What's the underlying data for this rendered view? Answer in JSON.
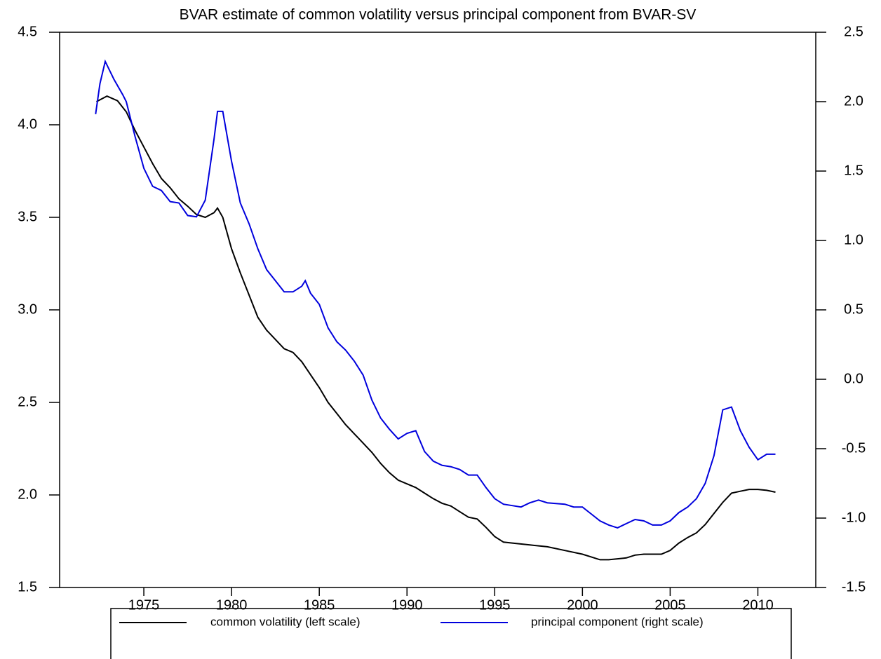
{
  "chart_data": {
    "type": "line",
    "title": "BVAR estimate of common volatility versus principal component from BVAR-SV",
    "xlim": [
      1970.2,
      2013.3
    ],
    "xticks": [
      1975,
      1980,
      1985,
      1990,
      1995,
      2000,
      2005,
      2010
    ],
    "ylim": [
      1.5,
      4.5
    ],
    "yticks": [
      {
        "value": 1.5,
        "label": "1.5"
      },
      {
        "value": 2,
        "label": "2.0"
      },
      {
        "value": 2.5,
        "label": "2.5"
      },
      {
        "value": 3,
        "label": "3.0"
      },
      {
        "value": 3.5,
        "label": "3.5"
      },
      {
        "value": 4,
        "label": "4.0"
      },
      {
        "value": 4.5,
        "label": "4.5"
      }
    ],
    "y2lim": [
      -1.5,
      2.5
    ],
    "y2ticks": [
      {
        "value": -1.5,
        "label": "-1.5"
      },
      {
        "value": -1,
        "label": "-1.0"
      },
      {
        "value": -0.5,
        "label": "-0.5"
      },
      {
        "value": 0,
        "label": "0.0"
      },
      {
        "value": 0.5,
        "label": "0.5"
      },
      {
        "value": 1,
        "label": "1.0"
      },
      {
        "value": 1.5,
        "label": "1.5"
      },
      {
        "value": 2,
        "label": "2.0"
      },
      {
        "value": 2.5,
        "label": "2.5"
      }
    ],
    "series": [
      {
        "name": "common volatility (left scale)",
        "color": "#000000",
        "x": [
          1972.3,
          1972.9,
          1973.5,
          1974,
          1974.5,
          1975,
          1975.5,
          1976,
          1976.5,
          1977,
          1977.5,
          1978,
          1978.5,
          1979,
          1979.2,
          1979.5,
          1980,
          1980.5,
          1981,
          1981.5,
          1982,
          1982.5,
          1983,
          1983.5,
          1984,
          1984.5,
          1985,
          1985.5,
          1986,
          1986.5,
          1987,
          1987.5,
          1988,
          1988.5,
          1989,
          1989.5,
          1990,
          1990.5,
          1991,
          1991.5,
          1992,
          1992.5,
          1993,
          1993.5,
          1994,
          1994.5,
          1995,
          1995.5,
          1996,
          1997,
          1998,
          1999,
          2000,
          2000.5,
          2001,
          2001.5,
          2002,
          2002.5,
          2003,
          2003.5,
          2004,
          2004.5,
          2005,
          2005.5,
          2006,
          2006.5,
          2007,
          2007.5,
          2008,
          2008.5,
          2009,
          2009.5,
          2010,
          2010.5,
          2011
        ],
        "values": [
          4.125,
          4.155,
          4.13,
          4.07,
          3.97,
          3.88,
          3.79,
          3.71,
          3.66,
          3.6,
          3.56,
          3.515,
          3.5,
          3.525,
          3.55,
          3.5,
          3.33,
          3.2,
          3.08,
          2.96,
          2.89,
          2.84,
          2.79,
          2.77,
          2.72,
          2.65,
          2.58,
          2.5,
          2.44,
          2.38,
          2.33,
          2.28,
          2.23,
          2.17,
          2.12,
          2.08,
          2.06,
          2.04,
          2.01,
          1.98,
          1.955,
          1.94,
          1.91,
          1.88,
          1.87,
          1.825,
          1.775,
          1.745,
          1.74,
          1.73,
          1.72,
          1.7,
          1.68,
          1.665,
          1.65,
          1.65,
          1.655,
          1.66,
          1.675,
          1.68,
          1.68,
          1.68,
          1.7,
          1.74,
          1.77,
          1.795,
          1.84,
          1.9,
          1.96,
          2.01,
          2.02,
          2.03,
          2.03,
          2.025,
          2.015
        ]
      },
      {
        "name": "principal component (right scale)",
        "color": "#0000dd",
        "axis": "y2",
        "x": [
          1972.25,
          1972.5,
          1972.8,
          1973.3,
          1973.8,
          1974,
          1974.5,
          1975,
          1975.5,
          1976,
          1976.5,
          1977,
          1977.5,
          1978,
          1978.5,
          1979,
          1979.2,
          1979.5,
          1980,
          1980.5,
          1981,
          1981.5,
          1982,
          1982.5,
          1983,
          1983.5,
          1984,
          1984.2,
          1984.5,
          1985,
          1985.5,
          1986,
          1986.5,
          1987,
          1987.5,
          1988,
          1988.5,
          1989,
          1989.5,
          1990,
          1990.5,
          1991,
          1991.5,
          1992,
          1992.5,
          1993,
          1993.5,
          1994,
          1994.5,
          1995,
          1995.5,
          1996,
          1996.5,
          1997,
          1997.5,
          1998,
          1999,
          1999.5,
          2000,
          2000.5,
          2001,
          2001.5,
          2002,
          2002.5,
          2003,
          2003.5,
          2004,
          2004.5,
          2005,
          2005.5,
          2006,
          2006.5,
          2007,
          2007.5,
          2008,
          2008.5,
          2009,
          2009.5,
          2010,
          2010.5,
          2011
        ],
        "values": [
          1.91,
          2.13,
          2.29,
          2.16,
          2.05,
          2.0,
          1.75,
          1.52,
          1.39,
          1.36,
          1.28,
          1.27,
          1.18,
          1.17,
          1.29,
          1.73,
          1.93,
          1.93,
          1.57,
          1.27,
          1.12,
          0.94,
          0.79,
          0.71,
          0.63,
          0.63,
          0.67,
          0.71,
          0.62,
          0.54,
          0.37,
          0.27,
          0.21,
          0.13,
          0.03,
          -0.15,
          -0.28,
          -0.36,
          -0.43,
          -0.39,
          -0.37,
          -0.52,
          -0.59,
          -0.62,
          -0.63,
          -0.65,
          -0.69,
          -0.69,
          -0.78,
          -0.86,
          -0.9,
          -0.91,
          -0.92,
          -0.89,
          -0.87,
          -0.89,
          -0.9,
          -0.92,
          -0.92,
          -0.97,
          -1.02,
          -1.05,
          -1.07,
          -1.04,
          -1.01,
          -1.02,
          -1.05,
          -1.05,
          -1.02,
          -0.96,
          -0.92,
          -0.86,
          -0.75,
          -0.55,
          -0.22,
          -0.2,
          -0.37,
          -0.49,
          -0.58,
          -0.54,
          -0.54
        ]
      }
    ]
  }
}
